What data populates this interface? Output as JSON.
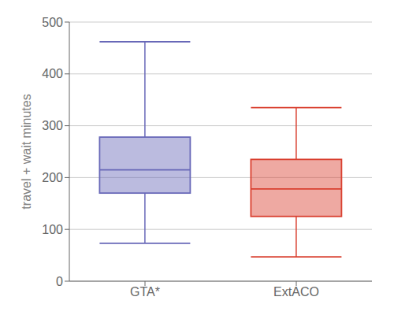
{
  "chart_data": {
    "type": "box",
    "categories": [
      "GTA*",
      "ExtACO"
    ],
    "whislo": [
      73,
      47
    ],
    "q1": [
      170,
      125
    ],
    "median": [
      215,
      178
    ],
    "q3": [
      278,
      235
    ],
    "whishi": [
      462,
      335
    ],
    "colors": [
      "#6868b8",
      "#d94030"
    ],
    "ylabel": "travel + wait minutes",
    "ylim": [
      0,
      500
    ],
    "yticks": [
      0,
      100,
      200,
      300,
      400,
      500
    ],
    "grid": true
  }
}
